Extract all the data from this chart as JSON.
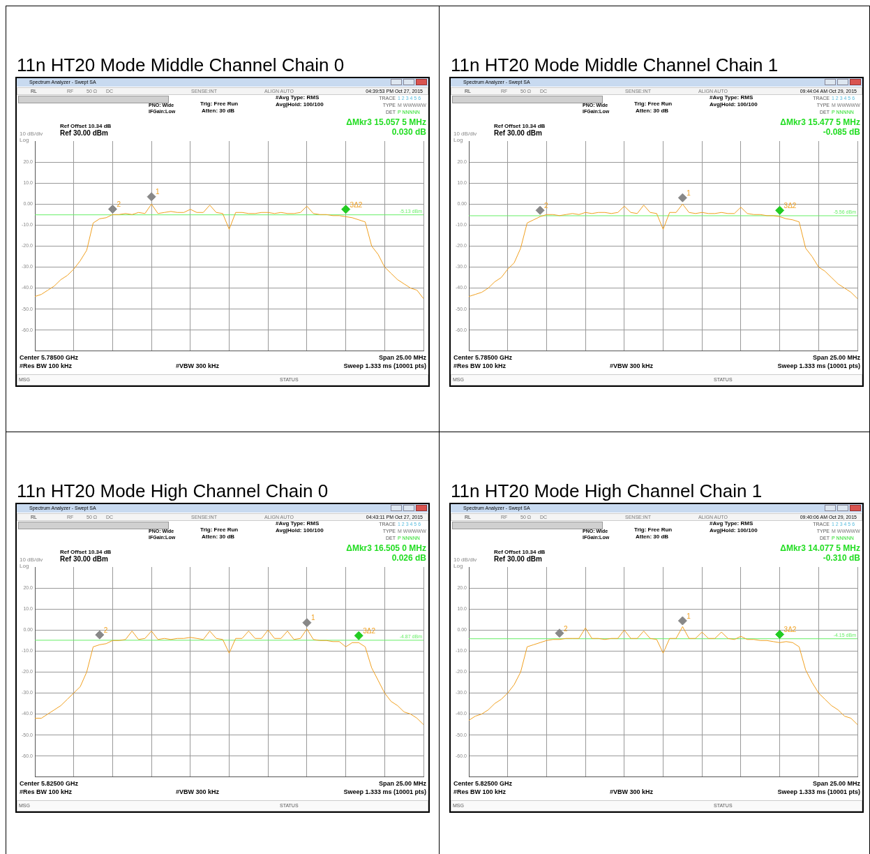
{
  "chart_data": [
    {
      "type": "line",
      "title": "11n HT20 Mode Middle Channel Chain 0",
      "categories": [
        null,
        null,
        null,
        null,
        null,
        null,
        null,
        null,
        null,
        null,
        null,
        null,
        null,
        null,
        null,
        null,
        null,
        null,
        null,
        null,
        null,
        null,
        null,
        null,
        null,
        null,
        null,
        null,
        null,
        null,
        null,
        null,
        null,
        null,
        null,
        null,
        null,
        null,
        null,
        null,
        null,
        null,
        null,
        null,
        null,
        null,
        null,
        null,
        null,
        null,
        null,
        null,
        null,
        null,
        null,
        null,
        null,
        null,
        null,
        null,
        null
      ],
      "series": [
        {
          "color": "#f0a020",
          "values": [
            -44,
            -43,
            -41,
            -39,
            -36,
            -34,
            -31,
            -27,
            -22,
            -9,
            -7,
            -6.5,
            -5,
            -5,
            -4.5,
            -5,
            -4,
            -4.5,
            0,
            -4.5,
            -4,
            -3.5,
            -4,
            -4,
            -2.5,
            -4,
            -4,
            -0.5,
            -4,
            -4.5,
            -12,
            -4,
            -4,
            -4.5,
            -4.5,
            -4,
            -4,
            -4.5,
            -4,
            -4.5,
            -4.5,
            -4,
            -1,
            -4.5,
            -5,
            -5,
            -5.5,
            -5.5,
            -6,
            -6.5,
            -7.5,
            -8.5,
            -20,
            -24,
            -30,
            -33,
            -36,
            -38,
            -40,
            -41,
            -45
          ]
        },
        {
          "name": "2",
          "type": "scatter",
          "marker": "diamond",
          "color": "#888888",
          "values": [
            null,
            null,
            null,
            null,
            null,
            null,
            null,
            null,
            null,
            null,
            null,
            null,
            -2.4,
            null,
            null,
            null,
            null,
            null,
            null,
            null,
            null,
            null,
            null,
            null,
            null,
            null,
            null,
            null,
            null,
            null,
            null,
            null,
            null,
            null,
            null,
            null,
            null,
            null,
            null,
            null,
            null,
            null,
            null,
            null,
            null,
            null,
            null,
            null,
            null,
            null,
            null,
            null,
            null,
            null,
            null,
            null,
            null,
            null,
            null,
            null,
            null
          ]
        },
        {
          "name": "1",
          "type": "scatter",
          "marker": "diamond",
          "color": "#888888",
          "values": [
            null,
            null,
            null,
            null,
            null,
            null,
            null,
            null,
            null,
            null,
            null,
            null,
            null,
            null,
            null,
            null,
            null,
            null,
            3.5,
            null,
            null,
            null,
            null,
            null,
            null,
            null,
            null,
            null,
            null,
            null,
            null,
            null,
            null,
            null,
            null,
            null,
            null,
            null,
            null,
            null,
            null,
            null,
            null,
            null,
            null,
            null,
            null,
            null,
            null,
            null,
            null,
            null,
            null,
            null,
            null,
            null,
            null,
            null,
            null,
            null,
            null
          ]
        },
        {
          "name": "3Δ2",
          "type": "scatter",
          "marker": "diamond",
          "color": "#22cc22",
          "values": [
            null,
            null,
            null,
            null,
            null,
            null,
            null,
            null,
            null,
            null,
            null,
            null,
            null,
            null,
            null,
            null,
            null,
            null,
            null,
            null,
            null,
            null,
            null,
            null,
            null,
            null,
            null,
            null,
            null,
            null,
            null,
            null,
            null,
            null,
            null,
            null,
            null,
            null,
            null,
            null,
            null,
            null,
            null,
            null,
            null,
            null,
            null,
            null,
            -2.5,
            null,
            null,
            null,
            null,
            null,
            null,
            null,
            null,
            null,
            null,
            null,
            null
          ]
        }
      ],
      "ylim": [
        -70,
        30
      ],
      "yticks": [
        {
          "value": 20,
          "label": "20.0"
        },
        {
          "value": 10,
          "label": "10.0"
        },
        {
          "value": 0,
          "label": "0.00"
        },
        {
          "value": -10,
          "label": "-10.0"
        },
        {
          "value": -20,
          "label": "-20.0"
        },
        {
          "value": -30,
          "label": "-30.0"
        },
        {
          "value": -40,
          "label": "-40.0"
        },
        {
          "value": -50,
          "label": "-50.0"
        },
        {
          "value": -60,
          "label": "-60.0"
        }
      ],
      "grid": true,
      "tick_labels": "y",
      "ref_lines": [
        {
          "axis": "y",
          "value": -5.13,
          "label": "-5.13 dBm",
          "color": "#66ee66"
        }
      ],
      "annotations": [
        "Spectrum Analyzer - Swept SA",
        "RL",
        "RF",
        "50 Ω",
        "DC",
        "SENSE:INT",
        "ALIGN AUTO",
        "04:39:53 PM Oct 27, 2015",
        "PNO: Wide",
        "IFGain:Low",
        "Trig: Free Run",
        "Atten: 30 dB",
        "#Avg Type: RMS",
        "Avg|Hold: 100/100",
        "TRACE",
        "1 2 3 4 5 6",
        "TYPE",
        "M WWWWW",
        "DET",
        "P NNNNN",
        "Ref Offset 10.34 dB",
        "Ref 30.00 dBm",
        "10 dB/div",
        "Log",
        "ΔMkr3 15.057 5 MHz",
        "0.030 dB",
        "Center 5.78500 GHz",
        "#Res BW 100 kHz",
        "#VBW 300 kHz",
        "Span 25.00 MHz",
        "Sweep  1.333 ms (10001 pts)",
        "MSG",
        "STATUS"
      ]
    },
    {
      "type": "line",
      "title": "11n HT20 Mode Middle Channel Chain 1",
      "categories": [
        null,
        null,
        null,
        null,
        null,
        null,
        null,
        null,
        null,
        null,
        null,
        null,
        null,
        null,
        null,
        null,
        null,
        null,
        null,
        null,
        null,
        null,
        null,
        null,
        null,
        null,
        null,
        null,
        null,
        null,
        null,
        null,
        null,
        null,
        null,
        null,
        null,
        null,
        null,
        null,
        null,
        null,
        null,
        null,
        null,
        null,
        null,
        null,
        null,
        null,
        null,
        null,
        null,
        null,
        null,
        null,
        null,
        null,
        null,
        null,
        null
      ],
      "series": [
        {
          "color": "#f0a020",
          "values": [
            -44,
            -43,
            -42,
            -40,
            -37,
            -35,
            -31,
            -28,
            -21,
            -9,
            -7.5,
            -6,
            -5,
            -5,
            -5.5,
            -5,
            -4.5,
            -5,
            -4,
            -4.5,
            -4,
            -4,
            -4.5,
            -4,
            -1,
            -4,
            -4.5,
            -0.5,
            -4,
            -4.5,
            -12,
            -4,
            -4,
            0,
            -4,
            -4.5,
            -4,
            -4.5,
            -4.5,
            -4,
            -4.5,
            -4.5,
            -1.5,
            -4.5,
            -5,
            -5,
            -5.5,
            -5.5,
            -6,
            -7,
            -7.5,
            -8.5,
            -21,
            -25,
            -30,
            -32,
            -35,
            -38,
            -40,
            -42,
            -45
          ]
        },
        {
          "name": "2",
          "type": "scatter",
          "marker": "diamond",
          "color": "#888888",
          "values": [
            null,
            null,
            null,
            null,
            null,
            null,
            null,
            null,
            null,
            null,
            null,
            -3,
            null,
            null,
            null,
            null,
            null,
            null,
            null,
            null,
            null,
            null,
            null,
            null,
            null,
            null,
            null,
            null,
            null,
            null,
            null,
            null,
            null,
            null,
            null,
            null,
            null,
            null,
            null,
            null,
            null,
            null,
            null,
            null,
            null,
            null,
            null,
            null,
            null,
            null,
            null,
            null,
            null,
            null,
            null,
            null,
            null,
            null,
            null,
            null,
            null
          ]
        },
        {
          "name": "1",
          "type": "scatter",
          "marker": "diamond",
          "color": "#888888",
          "values": [
            null,
            null,
            null,
            null,
            null,
            null,
            null,
            null,
            null,
            null,
            null,
            null,
            null,
            null,
            null,
            null,
            null,
            null,
            null,
            null,
            null,
            null,
            null,
            null,
            null,
            null,
            null,
            null,
            null,
            null,
            null,
            null,
            null,
            3,
            null,
            null,
            null,
            null,
            null,
            null,
            null,
            null,
            null,
            null,
            null,
            null,
            null,
            null,
            null,
            null,
            null,
            null,
            null,
            null,
            null,
            null,
            null,
            null,
            null,
            null,
            null
          ]
        },
        {
          "name": "3Δ2",
          "type": "scatter",
          "marker": "diamond",
          "color": "#22cc22",
          "values": [
            null,
            null,
            null,
            null,
            null,
            null,
            null,
            null,
            null,
            null,
            null,
            null,
            null,
            null,
            null,
            null,
            null,
            null,
            null,
            null,
            null,
            null,
            null,
            null,
            null,
            null,
            null,
            null,
            null,
            null,
            null,
            null,
            null,
            null,
            null,
            null,
            null,
            null,
            null,
            null,
            null,
            null,
            null,
            null,
            null,
            null,
            null,
            null,
            -3,
            null,
            null,
            null,
            null,
            null,
            null,
            null,
            null,
            null,
            null,
            null,
            null
          ]
        }
      ],
      "ylim": [
        -70,
        30
      ],
      "yticks": [
        {
          "value": 20,
          "label": "20.0"
        },
        {
          "value": 10,
          "label": "10.0"
        },
        {
          "value": 0,
          "label": "0.00"
        },
        {
          "value": -10,
          "label": "-10.0"
        },
        {
          "value": -20,
          "label": "-20.0"
        },
        {
          "value": -30,
          "label": "-30.0"
        },
        {
          "value": -40,
          "label": "-40.0"
        },
        {
          "value": -50,
          "label": "-50.0"
        },
        {
          "value": -60,
          "label": "-60.0"
        }
      ],
      "grid": true,
      "tick_labels": "y",
      "ref_lines": [
        {
          "axis": "y",
          "value": -5.56,
          "label": "-5.56 dBm",
          "color": "#66ee66"
        }
      ],
      "annotations": [
        "Spectrum Analyzer - Swept SA",
        "RL",
        "RF",
        "50 Ω",
        "DC",
        "SENSE:INT",
        "ALIGN AUTO",
        "09:44:04 AM Oct 29, 2015",
        "PNO: Wide",
        "IFGain:Low",
        "Trig: Free Run",
        "Atten: 30 dB",
        "#Avg Type: RMS",
        "Avg|Hold: 100/100",
        "TRACE",
        "1 2 3 4 5 6",
        "TYPE",
        "M WWWWW",
        "DET",
        "P NNNNN",
        "Ref Offset 10.34 dB",
        "Ref 30.00 dBm",
        "10 dB/div",
        "Log",
        "ΔMkr3 15.477 5 MHz",
        "-0.085 dB",
        "Center 5.78500 GHz",
        "#Res BW 100 kHz",
        "#VBW 300 kHz",
        "Span 25.00 MHz",
        "Sweep  1.333 ms (10001 pts)",
        "MSG",
        "STATUS"
      ]
    },
    {
      "type": "line",
      "title": "11n HT20 Mode High Channel Chain 0",
      "categories": [
        null,
        null,
        null,
        null,
        null,
        null,
        null,
        null,
        null,
        null,
        null,
        null,
        null,
        null,
        null,
        null,
        null,
        null,
        null,
        null,
        null,
        null,
        null,
        null,
        null,
        null,
        null,
        null,
        null,
        null,
        null,
        null,
        null,
        null,
        null,
        null,
        null,
        null,
        null,
        null,
        null,
        null,
        null,
        null,
        null,
        null,
        null,
        null,
        null,
        null,
        null,
        null,
        null,
        null,
        null,
        null,
        null,
        null,
        null,
        null,
        null
      ],
      "series": [
        {
          "color": "#f0a020",
          "values": [
            -42,
            -42,
            -40,
            -38,
            -36,
            -33,
            -30,
            -27,
            -20,
            -8,
            -7,
            -6.5,
            -5,
            -5,
            -4.5,
            -0.5,
            -4.5,
            -4,
            -0.5,
            -4.5,
            -4,
            -4.5,
            -4,
            -4,
            -3.5,
            -4,
            -4.5,
            -0.5,
            -4,
            -4.5,
            -11,
            -4,
            -4,
            -0.5,
            -4,
            -4,
            0,
            -4,
            -4,
            -0.5,
            -4.5,
            -4,
            0.5,
            -4.5,
            -5,
            -5,
            -5.5,
            -5.5,
            -8,
            -6,
            -6,
            -8,
            -18,
            -24,
            -30,
            -34,
            -36,
            -39,
            -40,
            -42,
            -45
          ]
        },
        {
          "name": "2",
          "type": "scatter",
          "marker": "diamond",
          "color": "#888888",
          "values": [
            null,
            null,
            null,
            null,
            null,
            null,
            null,
            null,
            null,
            null,
            -2.3,
            null,
            null,
            null,
            null,
            null,
            null,
            null,
            null,
            null,
            null,
            null,
            null,
            null,
            null,
            null,
            null,
            null,
            null,
            null,
            null,
            null,
            null,
            null,
            null,
            null,
            null,
            null,
            null,
            null,
            null,
            null,
            null,
            null,
            null,
            null,
            null,
            null,
            null,
            null,
            null,
            null,
            null,
            null,
            null,
            null,
            null,
            null,
            null,
            null,
            null
          ]
        },
        {
          "name": "1",
          "type": "scatter",
          "marker": "diamond",
          "color": "#888888",
          "values": [
            null,
            null,
            null,
            null,
            null,
            null,
            null,
            null,
            null,
            null,
            null,
            null,
            null,
            null,
            null,
            null,
            null,
            null,
            null,
            null,
            null,
            null,
            null,
            null,
            null,
            null,
            null,
            null,
            null,
            null,
            null,
            null,
            null,
            null,
            null,
            null,
            null,
            null,
            null,
            null,
            null,
            null,
            3.5,
            null,
            null,
            null,
            null,
            null,
            null,
            null,
            null,
            null,
            null,
            null,
            null,
            null,
            null,
            null,
            null,
            null,
            null
          ]
        },
        {
          "name": "3Δ2",
          "type": "scatter",
          "marker": "diamond",
          "color": "#22cc22",
          "values": [
            null,
            null,
            null,
            null,
            null,
            null,
            null,
            null,
            null,
            null,
            null,
            null,
            null,
            null,
            null,
            null,
            null,
            null,
            null,
            null,
            null,
            null,
            null,
            null,
            null,
            null,
            null,
            null,
            null,
            null,
            null,
            null,
            null,
            null,
            null,
            null,
            null,
            null,
            null,
            null,
            null,
            null,
            null,
            null,
            null,
            null,
            null,
            null,
            null,
            null,
            -2.7,
            null,
            null,
            null,
            null,
            null,
            null,
            null,
            null,
            null,
            null
          ]
        }
      ],
      "ylim": [
        -70,
        30
      ],
      "yticks": [
        {
          "value": 20,
          "label": "20.0"
        },
        {
          "value": 10,
          "label": "10.0"
        },
        {
          "value": 0,
          "label": "0.00"
        },
        {
          "value": -10,
          "label": "-10.0"
        },
        {
          "value": -20,
          "label": "-20.0"
        },
        {
          "value": -30,
          "label": "-30.0"
        },
        {
          "value": -40,
          "label": "-40.0"
        },
        {
          "value": -50,
          "label": "-50.0"
        },
        {
          "value": -60,
          "label": "-60.0"
        }
      ],
      "grid": true,
      "tick_labels": "y",
      "ref_lines": [
        {
          "axis": "y",
          "value": -4.87,
          "label": "-4.87 dBm",
          "color": "#66ee66"
        }
      ],
      "annotations": [
        "Spectrum Analyzer - Swept SA",
        "RL",
        "RF",
        "50 Ω",
        "DC",
        "SENSE:INT",
        "ALIGN AUTO",
        "04:43:11 PM Oct 27, 2015",
        "PNO: Wide",
        "IFGain:Low",
        "Trig: Free Run",
        "Atten: 30 dB",
        "#Avg Type: RMS",
        "Avg|Hold: 100/100",
        "TRACE",
        "1 2 3 4 5 6",
        "TYPE",
        "M WWWWW",
        "DET",
        "P NNNNN",
        "Ref Offset 10.34 dB",
        "Ref 30.00 dBm",
        "10 dB/div",
        "Log",
        "ΔMkr3 16.505 0 MHz",
        "0.026 dB",
        "Center 5.82500 GHz",
        "#Res BW 100 kHz",
        "#VBW 300 kHz",
        "Span 25.00 MHz",
        "Sweep  1.333 ms (10001 pts)",
        "MSG",
        "STATUS"
      ]
    },
    {
      "type": "line",
      "title": "11n HT20 Mode High Channel Chain 1",
      "categories": [
        null,
        null,
        null,
        null,
        null,
        null,
        null,
        null,
        null,
        null,
        null,
        null,
        null,
        null,
        null,
        null,
        null,
        null,
        null,
        null,
        null,
        null,
        null,
        null,
        null,
        null,
        null,
        null,
        null,
        null,
        null,
        null,
        null,
        null,
        null,
        null,
        null,
        null,
        null,
        null,
        null,
        null,
        null,
        null,
        null,
        null,
        null,
        null,
        null,
        null,
        null,
        null,
        null,
        null,
        null,
        null,
        null,
        null,
        null,
        null,
        null
      ],
      "series": [
        {
          "color": "#f0a020",
          "values": [
            -43,
            -41,
            -40,
            -38,
            -35,
            -33,
            -30,
            -26,
            -20,
            -8,
            -7,
            -6,
            -5,
            -4.5,
            -4.5,
            -4,
            -4,
            -4,
            1,
            -4,
            -4,
            -4.5,
            -4,
            -4,
            0,
            -4,
            -4,
            -0.5,
            -4,
            -4.5,
            -11,
            -4,
            -4,
            1.6,
            -4,
            -4,
            -1,
            -4,
            -4,
            -1,
            -4,
            -4.5,
            -3,
            -4.5,
            -4.5,
            -5,
            -5,
            -5.5,
            -6,
            -5.5,
            -6,
            -8,
            -19,
            -25,
            -30,
            -33,
            -36,
            -38,
            -41,
            -42,
            -45
          ]
        },
        {
          "name": "2",
          "type": "scatter",
          "marker": "diamond",
          "color": "#888888",
          "values": [
            null,
            null,
            null,
            null,
            null,
            null,
            null,
            null,
            null,
            null,
            null,
            null,
            null,
            null,
            -1.5,
            null,
            null,
            null,
            null,
            null,
            null,
            null,
            null,
            null,
            null,
            null,
            null,
            null,
            null,
            null,
            null,
            null,
            null,
            null,
            null,
            null,
            null,
            null,
            null,
            null,
            null,
            null,
            null,
            null,
            null,
            null,
            null,
            null,
            null,
            null,
            null,
            null,
            null,
            null,
            null,
            null,
            null,
            null,
            null,
            null,
            null
          ]
        },
        {
          "name": "1",
          "type": "scatter",
          "marker": "diamond",
          "color": "#888888",
          "values": [
            null,
            null,
            null,
            null,
            null,
            null,
            null,
            null,
            null,
            null,
            null,
            null,
            null,
            null,
            null,
            null,
            null,
            null,
            null,
            null,
            null,
            null,
            null,
            null,
            null,
            null,
            null,
            null,
            null,
            null,
            null,
            null,
            null,
            4.4,
            null,
            null,
            null,
            null,
            null,
            null,
            null,
            null,
            null,
            null,
            null,
            null,
            null,
            null,
            null,
            null,
            null,
            null,
            null,
            null,
            null,
            null,
            null,
            null,
            null,
            null,
            null
          ]
        },
        {
          "name": "3Δ2",
          "type": "scatter",
          "marker": "diamond",
          "color": "#22cc22",
          "values": [
            null,
            null,
            null,
            null,
            null,
            null,
            null,
            null,
            null,
            null,
            null,
            null,
            null,
            null,
            null,
            null,
            null,
            null,
            null,
            null,
            null,
            null,
            null,
            null,
            null,
            null,
            null,
            null,
            null,
            null,
            null,
            null,
            null,
            null,
            null,
            null,
            null,
            null,
            null,
            null,
            null,
            null,
            null,
            null,
            null,
            null,
            null,
            null,
            -2.1,
            null,
            null,
            null,
            null,
            null,
            null,
            null,
            null,
            null,
            null,
            null,
            null
          ]
        }
      ],
      "ylim": [
        -70,
        30
      ],
      "yticks": [
        {
          "value": 20,
          "label": "20.0"
        },
        {
          "value": 10,
          "label": "10.0"
        },
        {
          "value": 0,
          "label": "0.00"
        },
        {
          "value": -10,
          "label": "-10.0"
        },
        {
          "value": -20,
          "label": "-20.0"
        },
        {
          "value": -30,
          "label": "-30.0"
        },
        {
          "value": -40,
          "label": "-40.0"
        },
        {
          "value": -50,
          "label": "-50.0"
        },
        {
          "value": -60,
          "label": "-60.0"
        }
      ],
      "grid": true,
      "tick_labels": "y",
      "ref_lines": [
        {
          "axis": "y",
          "value": -4.15,
          "label": "-4.15 dBm",
          "color": "#66ee66"
        }
      ],
      "annotations": [
        "Spectrum Analyzer - Swept SA",
        "RL",
        "RF",
        "50 Ω",
        "DC",
        "SENSE:INT",
        "ALIGN AUTO",
        "09:40:06 AM Oct 29, 2015",
        "PNO: Wide",
        "IFGain:Low",
        "Trig: Free Run",
        "Atten: 30 dB",
        "#Avg Type: RMS",
        "Avg|Hold: 100/100",
        "TRACE",
        "1 2 3 4 5 6",
        "TYPE",
        "M WWWWW",
        "DET",
        "P NNNNN",
        "Ref Offset 10.34 dB",
        "Ref 30.00 dBm",
        "10 dB/div",
        "Log",
        "ΔMkr3 14.077 5 MHz",
        "-0.310 dB",
        "Center 5.82500 GHz",
        "#Res BW 100 kHz",
        "#VBW 300 kHz",
        "Span 25.00 MHz",
        "Sweep  1.333 ms (10001 pts)",
        "MSG",
        "STATUS"
      ]
    }
  ]
}
